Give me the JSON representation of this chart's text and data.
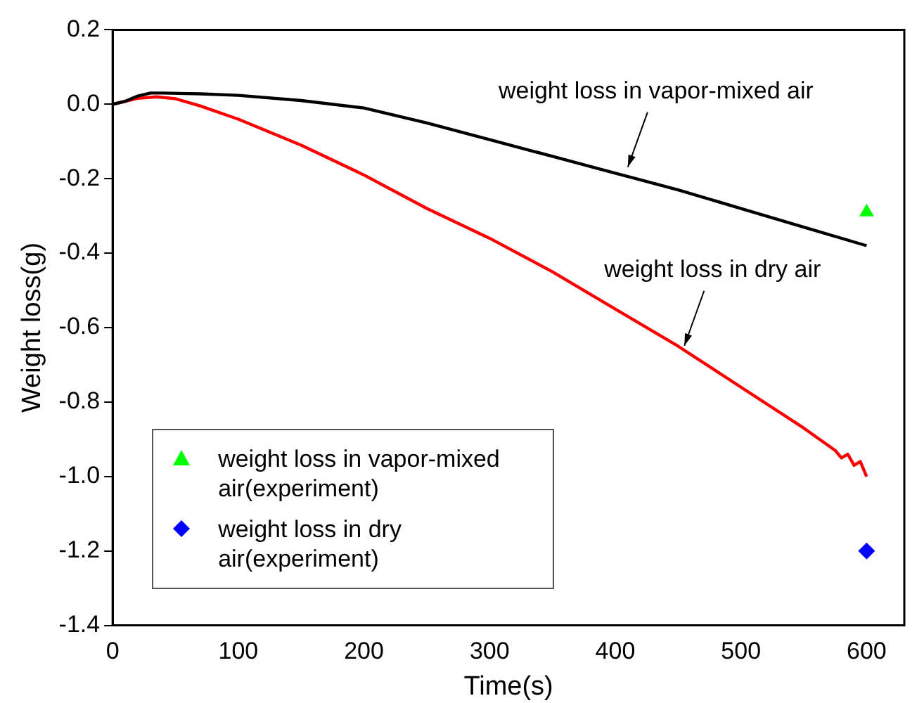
{
  "chart_data": {
    "type": "line",
    "xlabel": "Time(s)",
    "ylabel": "Weight loss(g)",
    "xlim": [
      0,
      630
    ],
    "xticks": [
      0,
      100,
      200,
      300,
      400,
      500,
      600
    ],
    "ylim": [
      -1.4,
      0.2
    ],
    "yticks": [
      0.2,
      {
        "value": 0,
        "label": "0.0"
      },
      -0.2,
      -0.4,
      -0.6,
      -0.8,
      {
        "value": -1,
        "label": "-1.0"
      },
      -1.2,
      -1.4
    ],
    "grid": false,
    "legend": "bottom left",
    "series": [
      {
        "type": "line",
        "color": "#000000",
        "marker": "none",
        "x": [
          0,
          10,
          20,
          30,
          40,
          70,
          100,
          150,
          200,
          250,
          300,
          350,
          400,
          450,
          500,
          550,
          600
        ],
        "values": [
          0,
          0.008,
          0.022,
          0.03,
          0.03,
          0.028,
          0.024,
          0.01,
          -0.01,
          -0.05,
          -0.095,
          -0.14,
          -0.185,
          -0.23,
          -0.28,
          -0.33,
          -0.38
        ]
      },
      {
        "type": "line",
        "color": "#ff0000",
        "marker": "none",
        "x": [
          0,
          10,
          20,
          35,
          50,
          70,
          100,
          150,
          200,
          250,
          300,
          350,
          400,
          450,
          500,
          550,
          575,
          580,
          585,
          590,
          595,
          600
        ],
        "values": [
          0,
          0.008,
          0.016,
          0.02,
          0.015,
          -0.005,
          -0.04,
          -0.11,
          -0.19,
          -0.28,
          -0.36,
          -0.45,
          -0.55,
          -0.65,
          -0.76,
          -0.87,
          -0.93,
          -0.95,
          -0.94,
          -0.97,
          -0.96,
          -1.0
        ]
      },
      {
        "type": "scatter",
        "name": "weight loss in vapor-mixed air(experiment)",
        "color": "#00ff00",
        "marker": "triangle",
        "x": [
          600
        ],
        "values": [
          -0.29
        ]
      },
      {
        "type": "scatter",
        "name": "weight loss in dry air(experiment)",
        "color": "#0000ff",
        "marker": "diamond",
        "x": [
          600
        ],
        "values": [
          -1.2
        ]
      }
    ],
    "annotations": [
      {
        "text": "weight loss in vapor-mixed air",
        "x": 410,
        "y": -0.18
      },
      {
        "text": "weight loss in dry air",
        "x": 455,
        "y": -0.66
      }
    ]
  }
}
